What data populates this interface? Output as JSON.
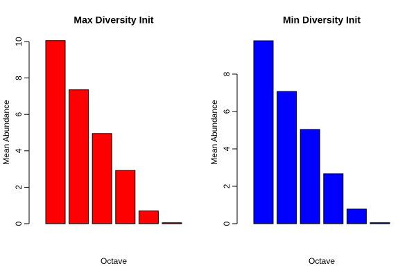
{
  "chart_data": [
    {
      "type": "bar",
      "title": "Max Diversity Init",
      "xlabel": "Octave",
      "ylabel": "Mean Abundance",
      "categories": [
        null,
        null,
        null,
        null,
        null,
        null
      ],
      "values": [
        10.05,
        7.35,
        4.95,
        2.92,
        0.7,
        0.05
      ],
      "color": "#ff0000",
      "ylim": [
        0,
        10.5
      ],
      "yticks": [
        0,
        2,
        4,
        6,
        8,
        10
      ],
      "grid": false
    },
    {
      "type": "bar",
      "title": "Min Diversity Init",
      "xlabel": "Octave",
      "ylabel": "Mean Abundance",
      "categories": [
        null,
        null,
        null,
        null,
        null,
        null
      ],
      "values": [
        9.78,
        7.07,
        5.04,
        2.67,
        0.78,
        0.05
      ],
      "color": "#0000ff",
      "ylim": [
        0,
        10.2
      ],
      "yticks": [
        0,
        2,
        4,
        6,
        8
      ],
      "grid": false
    }
  ]
}
